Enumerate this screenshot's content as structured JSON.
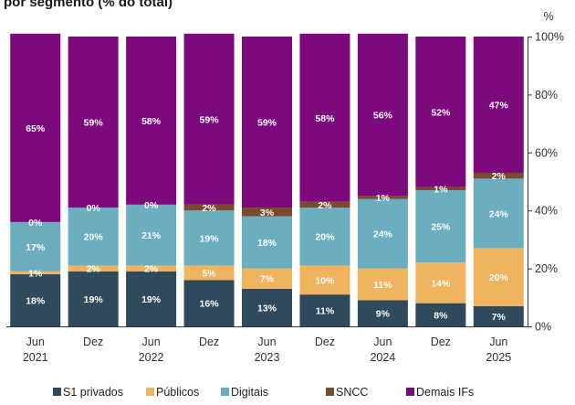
{
  "chart_data": {
    "type": "bar",
    "stacked": true,
    "title": "por segmento (% do total)",
    "ylabel": "%",
    "ylim": [
      0,
      100
    ],
    "yticks": [
      "0%",
      "20%",
      "40%",
      "60%",
      "80%",
      "100%"
    ],
    "ytick_values": [
      0,
      20,
      40,
      60,
      80,
      100
    ],
    "categories": [
      [
        "Jun",
        "2021"
      ],
      [
        "Dez",
        ""
      ],
      [
        "Jun",
        "2022"
      ],
      [
        "Dez",
        ""
      ],
      [
        "Jun",
        "2023"
      ],
      [
        "Dez",
        ""
      ],
      [
        "Jun",
        "2024"
      ],
      [
        "Dez",
        ""
      ],
      [
        "Jun",
        "2025"
      ]
    ],
    "legend_position": "bottom",
    "grid": false,
    "series": [
      {
        "name": "S1 privados",
        "color": "#2f4a5c",
        "values": [
          18,
          19,
          19,
          16,
          13,
          11,
          9,
          8,
          7
        ],
        "labels": [
          "18%",
          "19%",
          "19%",
          "16%",
          "13%",
          "11%",
          "9%",
          "8%",
          "7%"
        ]
      },
      {
        "name": "Públicos",
        "color": "#f0b45e",
        "values": [
          1,
          2,
          2,
          5,
          7,
          10,
          11,
          14,
          20
        ],
        "labels": [
          "1%",
          "2%",
          "2%",
          "5%",
          "7%",
          "10%",
          "11%",
          "14%",
          "20%"
        ]
      },
      {
        "name": "Digitais",
        "color": "#6aaebf",
        "values": [
          17,
          20,
          21,
          19,
          18,
          20,
          24,
          25,
          24
        ],
        "labels": [
          "17%",
          "20%",
          "21%",
          "19%",
          "18%",
          "20%",
          "24%",
          "25%",
          "24%"
        ]
      },
      {
        "name": "SNCC",
        "color": "#7a4a2c",
        "values": [
          0,
          0,
          0,
          2,
          3,
          2,
          1,
          1,
          2
        ],
        "labels": [
          "0%",
          "0%",
          "0%",
          "2%",
          "3%",
          "2%",
          "1%",
          "1%",
          "2%"
        ]
      },
      {
        "name": "Demais IFs",
        "color": "#7d0a7d",
        "values": [
          65,
          59,
          58,
          59,
          59,
          58,
          56,
          52,
          47
        ],
        "labels": [
          "65%",
          "59%",
          "58%",
          "59%",
          "59%",
          "58%",
          "56%",
          "52%",
          "47%"
        ]
      }
    ]
  }
}
